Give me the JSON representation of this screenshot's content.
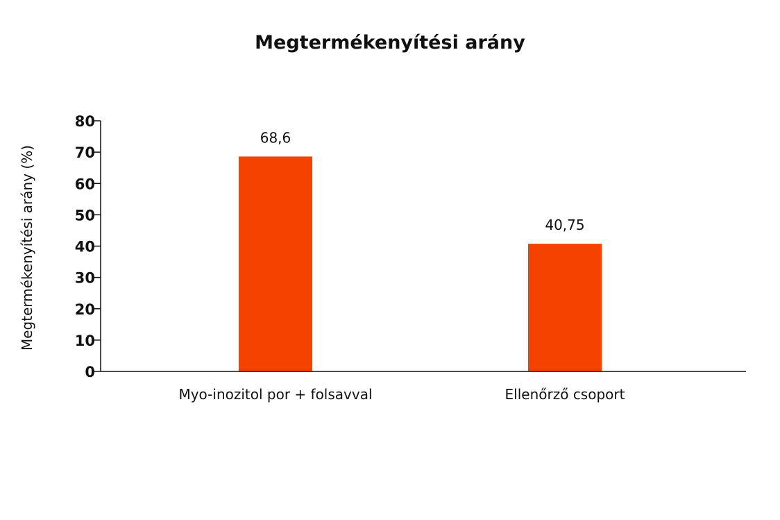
{
  "chart_data": {
    "type": "bar",
    "title": "Megtermékenyítési arány",
    "xlabel": "",
    "ylabel": "Megtermékenyítési arány (%)",
    "categories": [
      "Myo-inozitol por + folsavval",
      "Ellenőrző csoport"
    ],
    "values": [
      68.6,
      40.75
    ],
    "value_labels": [
      "68,6",
      "40,75"
    ],
    "ylim": [
      0,
      80
    ],
    "yticks": [
      0,
      10,
      20,
      30,
      40,
      50,
      60,
      70,
      80
    ],
    "ytick_labels": [
      "0",
      "10",
      "20",
      "30",
      "40",
      "50",
      "60",
      "70",
      "80"
    ],
    "grid": false,
    "bar_color": "#F54200"
  }
}
